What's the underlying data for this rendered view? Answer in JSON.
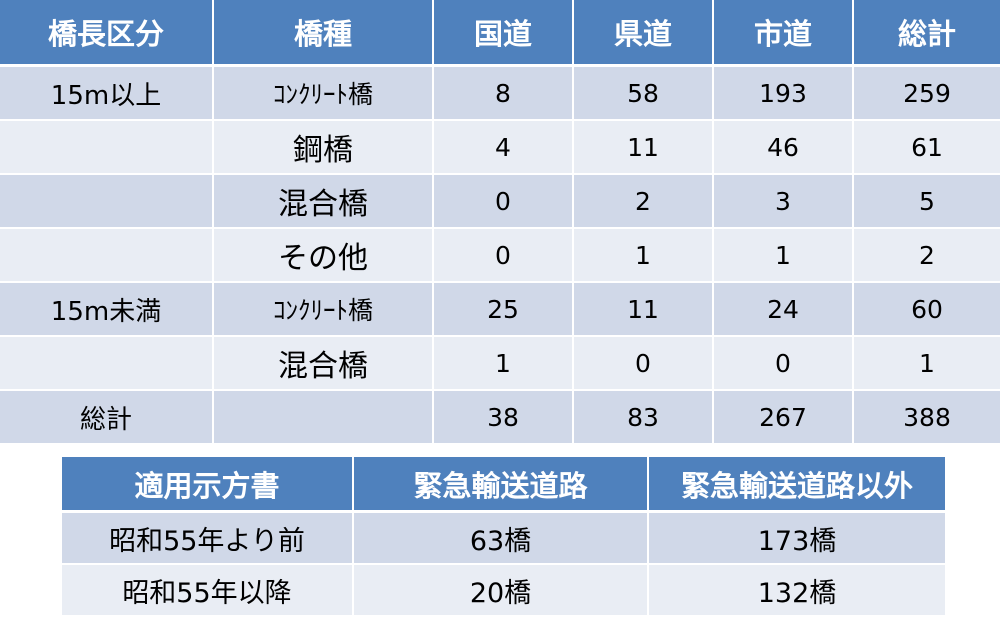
{
  "bridge_table": {
    "headers": [
      "橋長区分",
      "橋種",
      "国道",
      "県道",
      "市道",
      "総計"
    ],
    "rows": [
      {
        "length": "15m以上",
        "type": "ｺﾝｸﾘｰﾄ橋",
        "national": "8",
        "prefectural": "58",
        "municipal": "193",
        "total": "259"
      },
      {
        "length": "",
        "type": "鋼橋",
        "national": "4",
        "prefectural": "11",
        "municipal": "46",
        "total": "61"
      },
      {
        "length": "",
        "type": "混合橋",
        "national": "0",
        "prefectural": "2",
        "municipal": "3",
        "total": "5"
      },
      {
        "length": "",
        "type": "その他",
        "national": "0",
        "prefectural": "1",
        "municipal": "1",
        "total": "2"
      },
      {
        "length": "15m未満",
        "type": "ｺﾝｸﾘｰﾄ橋",
        "national": "25",
        "prefectural": "11",
        "municipal": "24",
        "total": "60"
      },
      {
        "length": "",
        "type": "混合橋",
        "national": "1",
        "prefectural": "0",
        "municipal": "0",
        "total": "1"
      },
      {
        "length": "総計",
        "type": "",
        "national": "38",
        "prefectural": "83",
        "municipal": "267",
        "total": "388"
      }
    ]
  },
  "spec_table": {
    "headers": [
      "適用示方書",
      "緊急輸送道路",
      "緊急輸送道路以外"
    ],
    "rows": [
      {
        "spec": "昭和55年より前",
        "emergency": "63橋",
        "non_emergency": "173橋"
      },
      {
        "spec": "昭和55年以降",
        "emergency": "20橋",
        "non_emergency": "132橋"
      }
    ]
  },
  "colors": {
    "header_bg": "#4F81BD",
    "row_dark": "#D0D8E8",
    "row_light": "#E9EDF4"
  }
}
